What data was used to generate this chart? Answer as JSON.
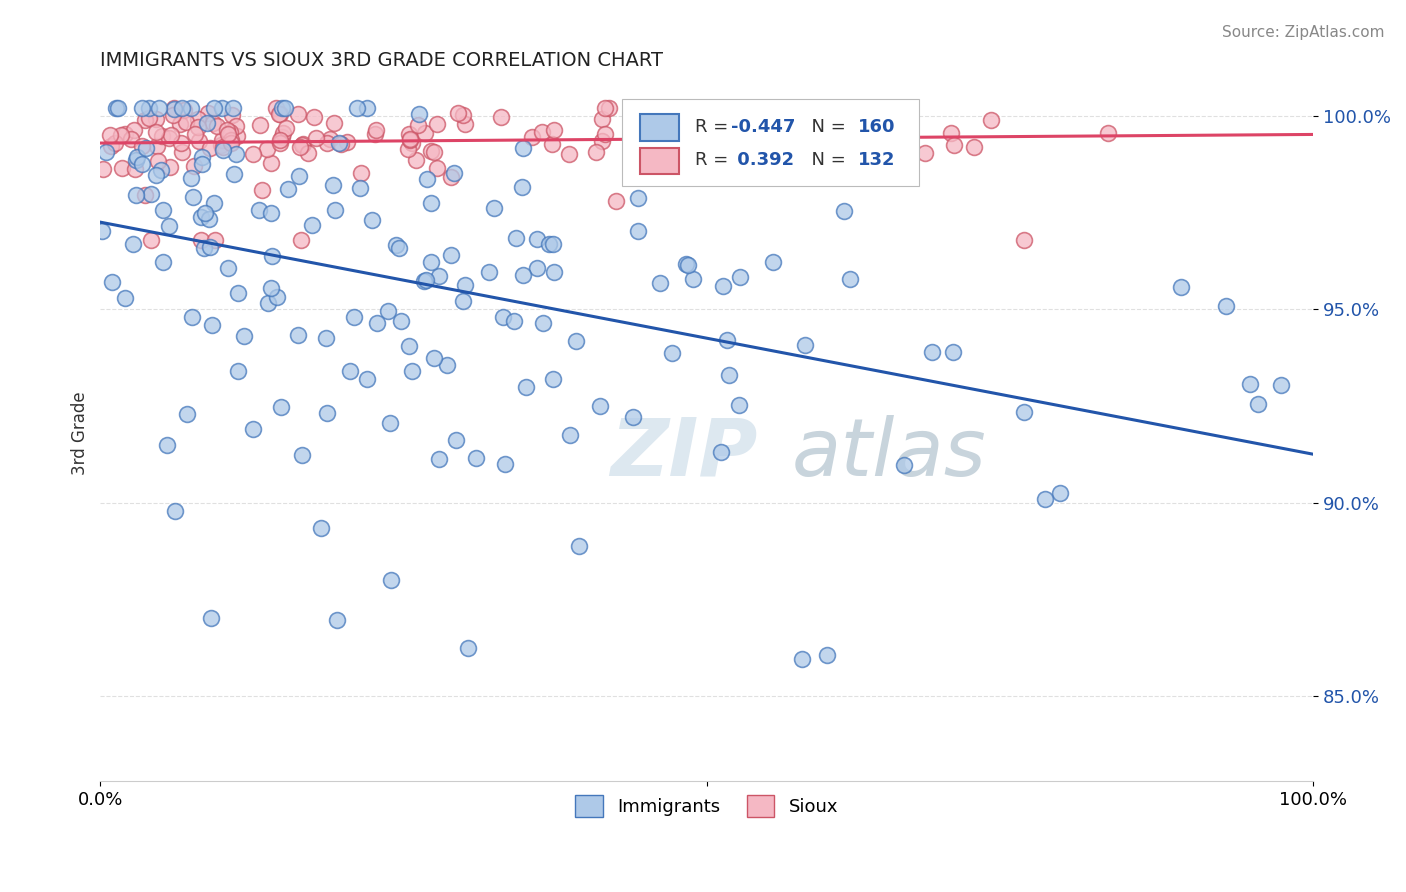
{
  "title": "IMMIGRANTS VS SIOUX 3RD GRADE CORRELATION CHART",
  "source": "Source: ZipAtlas.com",
  "ylabel": "3rd Grade",
  "ytick_labels": [
    "85.0%",
    "90.0%",
    "95.0%",
    "100.0%"
  ],
  "ytick_values": [
    0.85,
    0.9,
    0.95,
    1.0
  ],
  "legend_blue_r": "-0.447",
  "legend_blue_n": "160",
  "legend_pink_r": "0.392",
  "legend_pink_n": "132",
  "blue_color": "#aec9e8",
  "blue_edge_color": "#4477bb",
  "blue_line_color": "#2255aa",
  "pink_color": "#f5b8c4",
  "pink_edge_color": "#cc5566",
  "pink_line_color": "#dd4466",
  "background_color": "#ffffff",
  "watermark_color": "#dde8f0",
  "blue_R": -0.447,
  "blue_N": 160,
  "pink_R": 0.392,
  "pink_N": 132,
  "xmin": 0.0,
  "xmax": 1.0,
  "ymin": 0.828,
  "ymax": 1.008,
  "blue_line_y0": 0.978,
  "blue_line_y1": 0.928,
  "pink_line_y0": 0.993,
  "pink_line_y1": 0.999
}
